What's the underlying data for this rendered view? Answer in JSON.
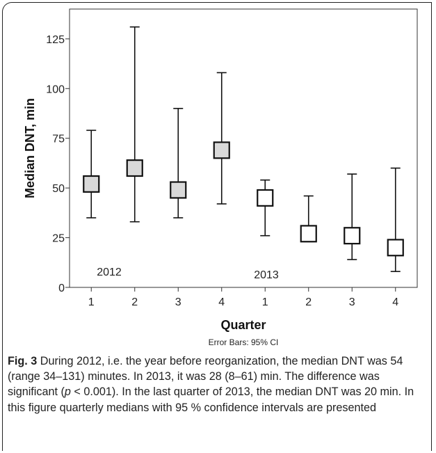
{
  "chart_data": {
    "type": "box",
    "ylabel": "Median DNT, min",
    "xlabel": "Quarter",
    "note": "Error Bars: 95% CI",
    "ylim": [
      0,
      140
    ],
    "yticks": [
      0,
      25,
      50,
      75,
      100,
      125
    ],
    "categories": [
      "1",
      "2",
      "3",
      "4",
      "1",
      "2",
      "3",
      "4"
    ],
    "group_labels": [
      {
        "text": "2012",
        "group": "2012"
      },
      {
        "text": "2013",
        "group": "2013"
      }
    ],
    "series": [
      {
        "group": "2012",
        "fill": "#d9d9d9",
        "points": [
          {
            "quarter": "1",
            "median": 52,
            "box_low": 48,
            "box_high": 56,
            "low": 35,
            "high": 79
          },
          {
            "quarter": "2",
            "median": 60,
            "box_low": 56,
            "box_high": 64,
            "low": 33,
            "high": 131
          },
          {
            "quarter": "3",
            "median": 49,
            "box_low": 45,
            "box_high": 53,
            "low": 35,
            "high": 90
          },
          {
            "quarter": "4",
            "median": 69,
            "box_low": 65,
            "box_high": 73,
            "low": 42,
            "high": 108
          }
        ]
      },
      {
        "group": "2013",
        "fill": "#ffffff",
        "points": [
          {
            "quarter": "1",
            "median": 45,
            "box_low": 41,
            "box_high": 49,
            "low": 26,
            "high": 54
          },
          {
            "quarter": "2",
            "median": 27,
            "box_low": 23,
            "box_high": 31,
            "low": 23,
            "high": 46
          },
          {
            "quarter": "3",
            "median": 26,
            "box_low": 22,
            "box_high": 30,
            "low": 14,
            "high": 57
          },
          {
            "quarter": "4",
            "median": 20,
            "box_low": 16,
            "box_high": 24,
            "low": 8,
            "high": 60
          }
        ]
      }
    ]
  },
  "caption": {
    "label": "Fig. 3",
    "text_1": " During 2012, i.e. the year before reorganization, the median DNT was 54 (range 34–131) minutes. In 2013, it was 28 (8–61) min. The difference was significant (",
    "p_italic": "p",
    "text_2": " < 0.001). In the last quarter of 2013, the median DNT was 20 min. In this figure quarterly medians with 95 % confidence intervals are presented"
  }
}
